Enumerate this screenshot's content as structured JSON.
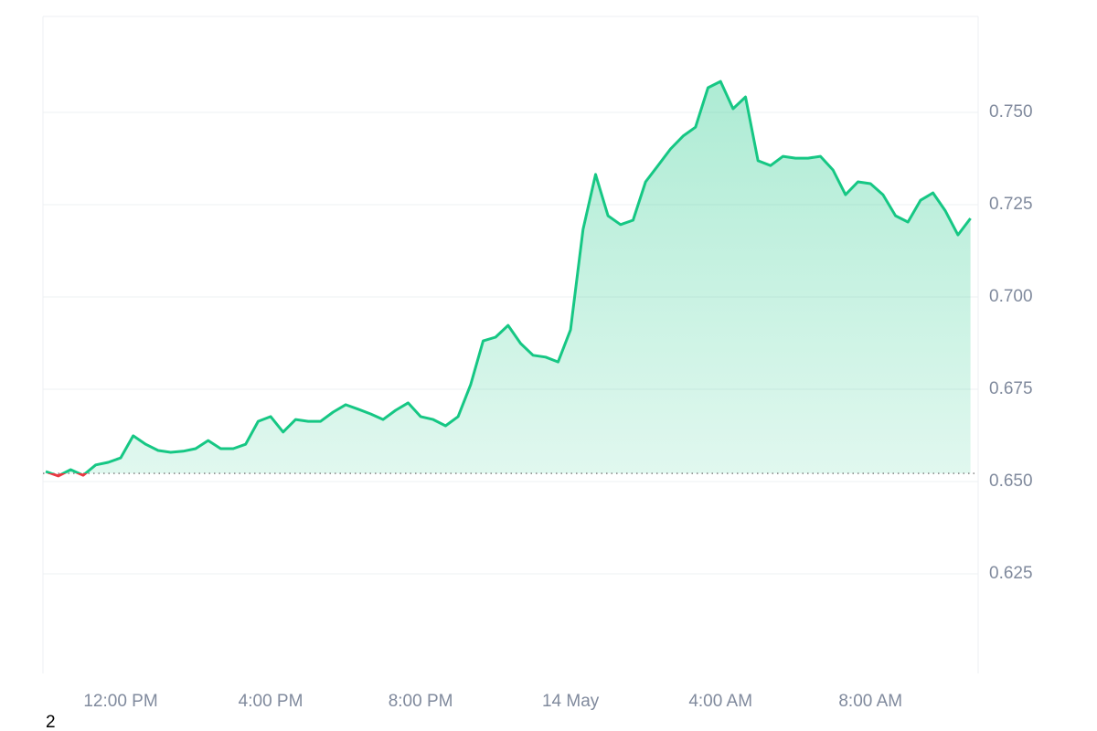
{
  "chart_data": {
    "type": "line",
    "categories": [
      null,
      null,
      null,
      null,
      null,
      null,
      "12:00 PM",
      null,
      null,
      null,
      null,
      null,
      null,
      null,
      null,
      null,
      null,
      null,
      "4:00 PM",
      null,
      null,
      null,
      null,
      null,
      null,
      null,
      null,
      null,
      null,
      null,
      "8:00 PM",
      null,
      null,
      null,
      null,
      null,
      null,
      null,
      null,
      null,
      null,
      null,
      "14 May",
      null,
      null,
      null,
      null,
      null,
      null,
      null,
      null,
      null,
      null,
      null,
      "4:00 AM",
      null,
      null,
      null,
      null,
      null,
      null,
      null,
      null,
      null,
      null,
      null,
      "8:00 AM",
      null,
      null,
      null,
      null,
      null,
      null,
      null,
      null
    ],
    "series": [
      {
        "color": "#16c784",
        "down_color": "#ea3943",
        "values": [
          0.6527,
          0.6515,
          0.6532,
          0.6517,
          0.6545,
          0.6552,
          0.6564,
          0.6624,
          0.6601,
          0.6584,
          0.6579,
          0.6582,
          0.6589,
          0.6611,
          0.6589,
          0.6589,
          0.6601,
          0.6663,
          0.6676,
          0.6634,
          0.6668,
          0.6663,
          0.6663,
          0.6688,
          0.6708,
          0.6696,
          0.6683,
          0.6668,
          0.6693,
          0.6713,
          0.6676,
          0.6668,
          0.6651,
          0.6676,
          0.6762,
          0.6881,
          0.6891,
          0.6923,
          0.6874,
          0.6842,
          0.6837,
          0.6824,
          0.6911,
          0.7183,
          0.7332,
          0.722,
          0.7196,
          0.7208,
          0.7312,
          0.7356,
          0.7401,
          0.7436,
          0.746,
          0.7567,
          0.7584,
          0.751,
          0.7542,
          0.7369,
          0.7356,
          0.7381,
          0.7376,
          0.7376,
          0.7381,
          0.7344,
          0.7277,
          0.7312,
          0.7307,
          0.7277,
          0.722,
          0.7203,
          0.7262,
          0.7282,
          0.7233,
          0.7168,
          0.7213
        ]
      }
    ],
    "baseline": 0.6522,
    "ylim": [
      0.598,
      0.776
    ],
    "yticks": [
      0.625,
      {
        "value": 0.65,
        "label": "0.650"
      },
      0.675,
      {
        "value": 0.7,
        "label": "0.700"
      },
      0.725,
      {
        "value": 0.75,
        "label": "0.750"
      }
    ],
    "grid": true,
    "footer": "2"
  }
}
